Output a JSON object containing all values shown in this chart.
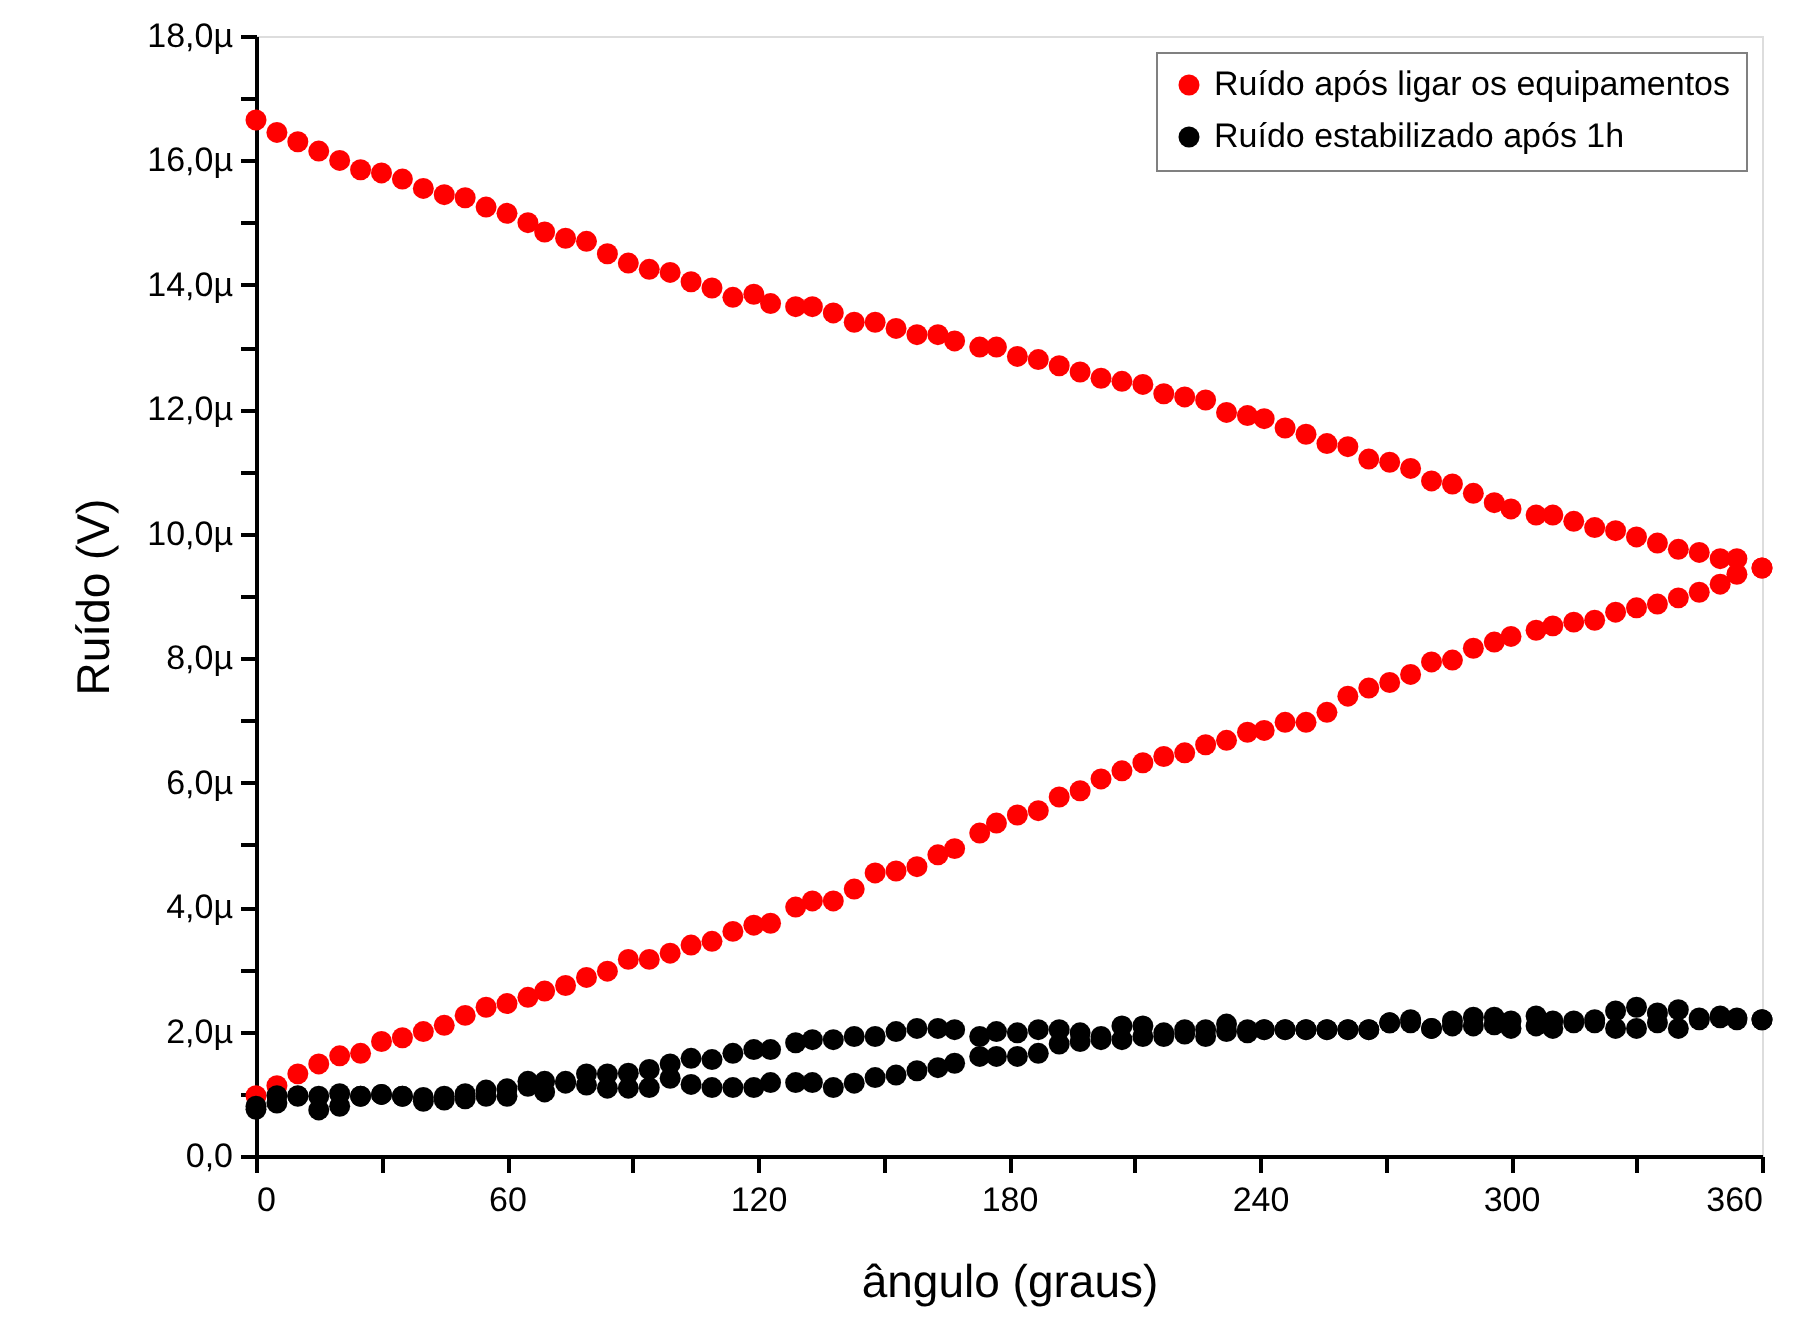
{
  "chart_data": {
    "type": "scatter",
    "xlabel": "ângulo (graus)",
    "ylabel": "Ruído (V)",
    "xlim": [
      0,
      360
    ],
    "ylim": [
      0,
      18
    ],
    "xticks": [
      0,
      {
        "value": 30,
        "label": null
      },
      60,
      {
        "value": 90,
        "label": null
      },
      120,
      {
        "value": 150,
        "label": null
      },
      180,
      {
        "value": 210,
        "label": null
      },
      240,
      {
        "value": 270,
        "label": null
      },
      300,
      {
        "value": 330,
        "label": null
      },
      360
    ],
    "yticks": [
      {
        "value": 0,
        "label": "0,0"
      },
      {
        "value": 1,
        "label": null
      },
      {
        "value": 2,
        "label": "2,0µ"
      },
      {
        "value": 3,
        "label": null
      },
      {
        "value": 4,
        "label": "4,0µ"
      },
      {
        "value": 5,
        "label": null
      },
      {
        "value": 6,
        "label": "6,0µ"
      },
      {
        "value": 7,
        "label": null
      },
      {
        "value": 8,
        "label": "8,0µ"
      },
      {
        "value": 9,
        "label": null
      },
      {
        "value": 10,
        "label": "10,0µ"
      },
      {
        "value": 11,
        "label": null
      },
      {
        "value": 12,
        "label": "12,0µ"
      },
      {
        "value": 13,
        "label": null
      },
      {
        "value": 14,
        "label": "14,0µ"
      },
      {
        "value": 15,
        "label": null
      },
      {
        "value": 16,
        "label": "16,0µ"
      },
      {
        "value": 17,
        "label": null
      },
      {
        "value": 18,
        "label": "18,0µ"
      }
    ],
    "grid": false,
    "legend": "top right",
    "marker": "circle",
    "series": [
      {
        "name": "Ruído após ligar os equipamentos",
        "color": "#ff0000",
        "x": [
          0,
          5,
          10,
          15,
          20,
          25,
          30,
          35,
          40,
          45,
          50,
          55,
          60,
          65,
          69,
          74,
          79,
          84,
          89,
          94,
          99,
          104,
          109,
          114,
          119,
          123,
          129,
          133,
          138,
          143,
          148,
          153,
          158,
          163,
          167,
          173,
          177,
          182,
          187,
          192,
          197,
          202,
          207,
          212,
          217,
          222,
          227,
          232,
          237,
          241,
          246,
          251,
          256,
          261,
          266,
          271,
          276,
          281,
          286,
          291,
          296,
          300,
          306,
          310,
          315,
          320,
          325,
          330,
          335,
          340,
          345,
          350,
          354,
          360,
          0,
          5,
          10,
          15,
          20,
          25,
          30,
          35,
          40,
          45,
          50,
          55,
          60,
          65,
          69,
          74,
          79,
          84,
          89,
          94,
          99,
          104,
          109,
          114,
          119,
          123,
          129,
          133,
          138,
          143,
          148,
          153,
          158,
          163,
          167,
          173,
          177,
          182,
          187,
          192,
          197,
          202,
          207,
          212,
          217,
          222,
          227,
          232,
          237,
          241,
          246,
          251,
          256,
          261,
          266,
          271,
          276,
          281,
          286,
          291,
          296,
          300,
          306,
          310,
          315,
          320,
          325,
          330,
          335,
          340,
          345,
          350,
          354,
          360
        ],
        "values": [
          16.65,
          16.45,
          16.3,
          16.15,
          16.0,
          15.85,
          15.8,
          15.7,
          15.55,
          15.45,
          15.4,
          15.25,
          15.15,
          15.0,
          14.85,
          14.75,
          14.7,
          14.5,
          14.35,
          14.25,
          14.2,
          14.05,
          13.95,
          13.8,
          13.85,
          13.7,
          13.65,
          13.65,
          13.55,
          13.4,
          13.4,
          13.3,
          13.2,
          13.2,
          13.1,
          13.0,
          13.0,
          12.85,
          12.8,
          12.7,
          12.6,
          12.5,
          12.45,
          12.4,
          12.25,
          12.2,
          12.15,
          11.95,
          11.9,
          11.85,
          11.7,
          11.6,
          11.45,
          11.4,
          11.2,
          11.15,
          11.05,
          10.85,
          10.8,
          10.65,
          10.5,
          10.4,
          10.3,
          10.3,
          10.2,
          10.1,
          10.05,
          9.95,
          9.85,
          9.75,
          9.7,
          9.6,
          9.6,
          9.45,
          0.97,
          1.13,
          1.32,
          1.48,
          1.61,
          1.65,
          1.84,
          1.9,
          2.0,
          2.1,
          2.26,
          2.39,
          2.45,
          2.55,
          2.65,
          2.74,
          2.87,
          2.97,
          3.16,
          3.16,
          3.26,
          3.39,
          3.45,
          3.61,
          3.71,
          3.74,
          4.0,
          4.1,
          4.1,
          4.29,
          4.55,
          4.58,
          4.65,
          4.84,
          4.94,
          5.19,
          5.35,
          5.48,
          5.55,
          5.77,
          5.87,
          6.06,
          6.19,
          6.32,
          6.42,
          6.48,
          6.61,
          6.68,
          6.81,
          6.84,
          6.97,
          6.97,
          7.13,
          7.39,
          7.52,
          7.61,
          7.74,
          7.94,
          7.97,
          8.16,
          8.26,
          8.35,
          8.45,
          8.52,
          8.58,
          8.61,
          8.74,
          8.81,
          8.87,
          8.97,
          9.06,
          9.19,
          9.35,
          9.45
        ]
      },
      {
        "name": "Ruído estabilizado após 1h",
        "color": "#000000",
        "x": [
          0,
          5,
          10,
          15,
          20,
          25,
          30,
          35,
          40,
          45,
          50,
          55,
          60,
          65,
          69,
          74,
          79,
          84,
          89,
          94,
          99,
          104,
          109,
          114,
          119,
          123,
          129,
          133,
          138,
          143,
          148,
          153,
          158,
          163,
          167,
          173,
          177,
          182,
          187,
          192,
          197,
          202,
          207,
          212,
          217,
          222,
          227,
          232,
          237,
          241,
          246,
          251,
          256,
          261,
          266,
          271,
          276,
          281,
          286,
          291,
          296,
          300,
          306,
          310,
          315,
          320,
          325,
          330,
          335,
          340,
          345,
          350,
          354,
          360,
          0,
          5,
          10,
          15,
          20,
          25,
          30,
          35,
          40,
          45,
          50,
          55,
          60,
          65,
          69,
          74,
          79,
          84,
          89,
          94,
          99,
          104,
          109,
          114,
          119,
          123,
          129,
          133,
          138,
          143,
          148,
          153,
          158,
          163,
          167,
          173,
          177,
          182,
          187,
          192,
          197,
          202,
          207,
          212,
          217,
          222,
          227,
          232,
          237,
          241,
          246,
          251,
          256,
          261,
          266,
          271,
          276,
          281,
          286,
          291,
          296,
          300,
          306,
          310,
          315,
          320,
          325,
          330,
          335,
          340,
          345,
          350,
          354,
          360
        ],
        "values": [
          0.8,
          0.97,
          0.97,
          0.96,
          1.0,
          0.96,
          0.99,
          0.96,
          0.94,
          0.96,
          1.0,
          1.06,
          1.08,
          1.2,
          1.2,
          1.2,
          1.32,
          1.32,
          1.33,
          1.39,
          1.48,
          1.57,
          1.55,
          1.65,
          1.71,
          1.71,
          1.82,
          1.87,
          1.87,
          1.92,
          1.92,
          2.0,
          2.05,
          2.05,
          2.03,
          1.92,
          2.0,
          1.98,
          2.03,
          2.03,
          1.98,
          1.92,
          2.09,
          2.09,
          1.98,
          2.03,
          2.03,
          2.12,
          2.03,
          2.03,
          2.03,
          2.03,
          2.03,
          2.03,
          2.03,
          2.14,
          2.19,
          2.05,
          2.17,
          2.23,
          2.23,
          2.17,
          2.25,
          2.17,
          2.17,
          2.19,
          2.33,
          2.39,
          2.3,
          2.35,
          2.19,
          2.25,
          2.19,
          2.19,
          0.75,
          0.85,
          0.96,
          0.74,
          0.8,
          0.96,
          0.99,
          0.96,
          0.88,
          0.9,
          0.92,
          0.96,
          0.96,
          1.12,
          1.03,
          1.17,
          1.14,
          1.09,
          1.09,
          1.1,
          1.25,
          1.15,
          1.1,
          1.1,
          1.1,
          1.18,
          1.18,
          1.18,
          1.1,
          1.17,
          1.26,
          1.3,
          1.37,
          1.42,
          1.49,
          1.6,
          1.6,
          1.6,
          1.65,
          1.8,
          1.84,
          1.87,
          1.87,
          1.92,
          1.92,
          1.96,
          1.92,
          2.0,
          1.98,
          2.03,
          2.03,
          2.03,
          2.03,
          2.03,
          2.03,
          2.14,
          2.14,
          2.05,
          2.09,
          2.09,
          2.11,
          2.05,
          2.09,
          2.05,
          2.14,
          2.14,
          2.05,
          2.05,
          2.14,
          2.05,
          2.22,
          2.22,
          2.22,
          2.19
        ]
      }
    ]
  }
}
